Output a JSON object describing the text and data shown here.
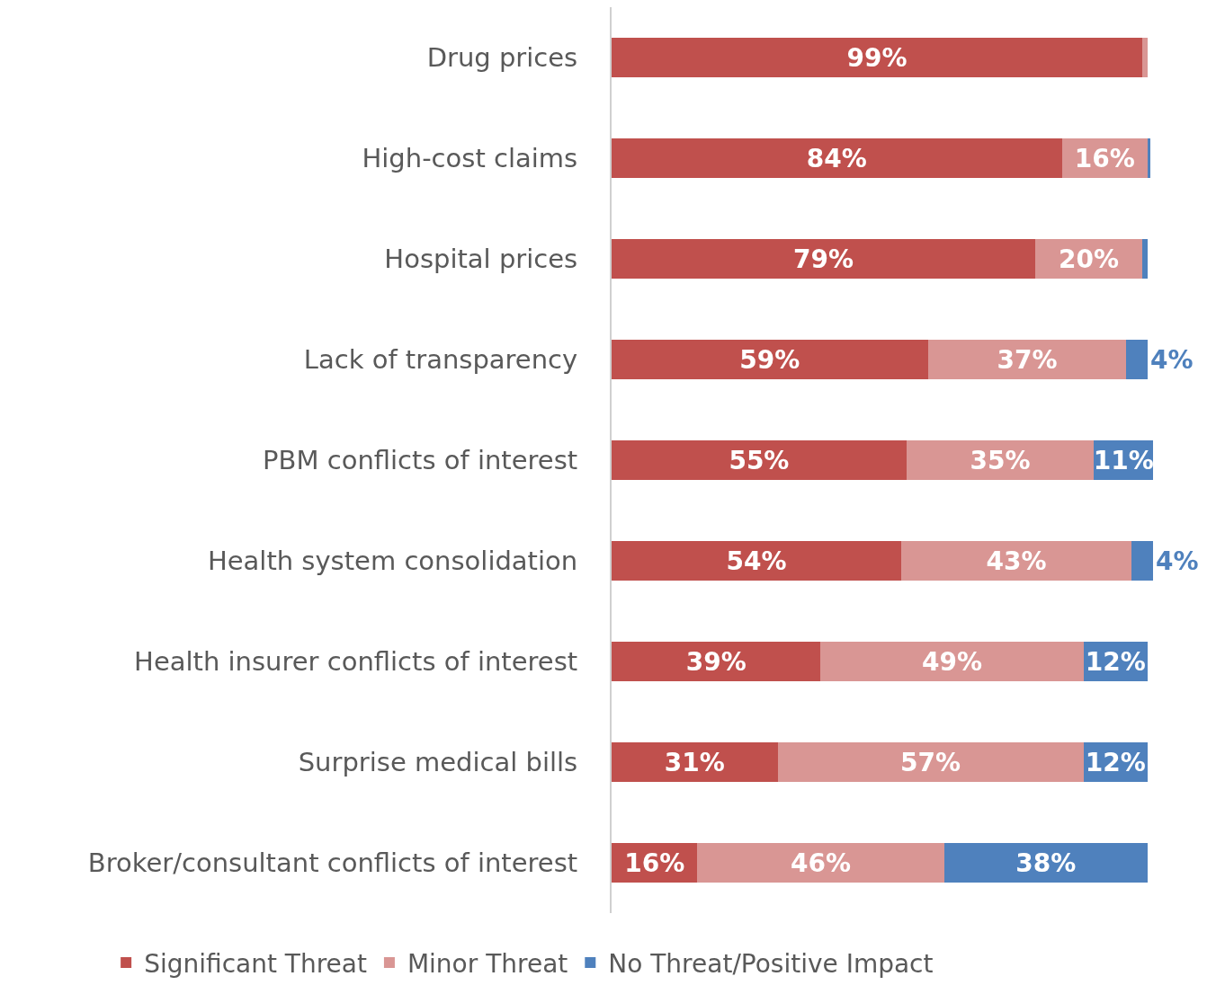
{
  "chart_data": {
    "type": "bar",
    "orientation": "horizontal",
    "stacked": true,
    "legend": "bottom",
    "categories": [
      "Drug prices",
      "High-cost claims",
      "Hospital prices",
      "Lack of transparency",
      "PBM conflicts of interest",
      "Health system consolidation",
      "Health insurer conflicts of interest",
      "Surprise medical bills",
      "Broker/consultant conflicts of interest"
    ],
    "series": [
      {
        "name": "Significant Threat",
        "color": "#c0504d",
        "values": [
          99,
          84,
          79,
          59,
          55,
          54,
          39,
          31,
          16
        ],
        "value_labels": [
          "99%",
          "84%",
          "79%",
          "59%",
          "55%",
          "54%",
          "39%",
          "31%",
          "16%"
        ]
      },
      {
        "name": "Minor Threat",
        "color": "#d99694",
        "values": [
          1,
          16,
          20,
          37,
          35,
          43,
          49,
          57,
          46
        ],
        "value_labels": [
          null,
          "16%",
          "20%",
          "37%",
          "35%",
          "43%",
          "49%",
          "57%",
          "46%"
        ]
      },
      {
        "name": "No Threat/Positive Impact",
        "color": "#4f81bd",
        "values": [
          0,
          0.5,
          1,
          4,
          11,
          4,
          12,
          12,
          38
        ],
        "value_labels": [
          null,
          null,
          null,
          "4%",
          "11%",
          "4%",
          "12%",
          "12%",
          "38%"
        ]
      }
    ]
  }
}
